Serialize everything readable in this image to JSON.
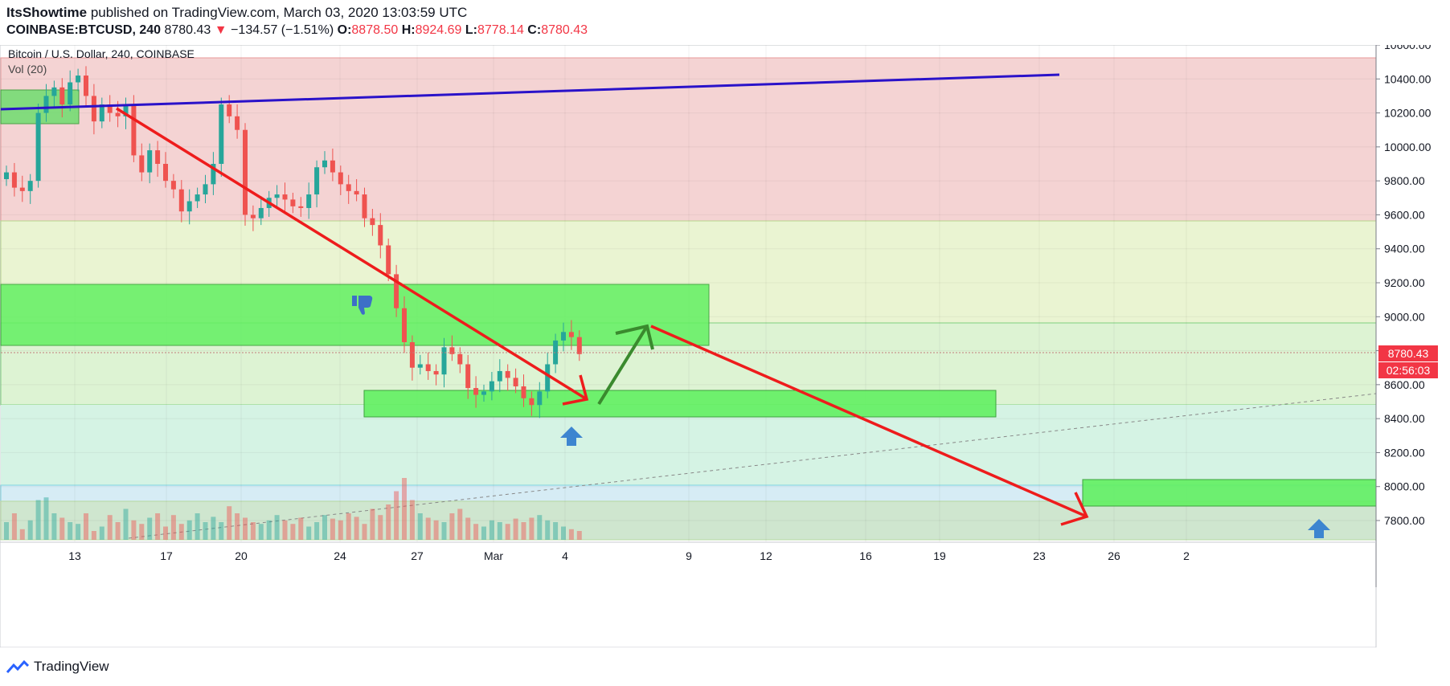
{
  "header": {
    "author": "ItsShowtime",
    "published_text": " published on TradingView.com, March 03, 2020 13:03:59 UTC",
    "symbol": "COINBASE:BTCUSD, 240",
    "last": "8780.43",
    "change_arrow": "▼",
    "change": "−134.57 (−1.51%)",
    "o_label": "O:",
    "o_value": "8878.50",
    "h_label": "H:",
    "h_value": "8924.69",
    "l_label": "L:",
    "l_value": "8778.14",
    "c_label": "C:",
    "c_value": "8780.43"
  },
  "legend": {
    "title": "Bitcoin / U.S. Dollar, 240, COINBASE",
    "volume": "Vol (20)"
  },
  "price_axis": {
    "ticks": [
      "10600.00",
      "10400.00",
      "10200.00",
      "10000.00",
      "9800.00",
      "9600.00",
      "9400.00",
      "9200.00",
      "9000.00",
      "8800.00",
      "8600.00",
      "8400.00",
      "8200.00",
      "8000.00",
      "7800.00"
    ],
    "tick_values": [
      10600,
      10400,
      10200,
      10000,
      9800,
      9600,
      9400,
      9200,
      9000,
      8800,
      8600,
      8400,
      8200,
      8000,
      7800
    ],
    "last_price_label": "8780.43",
    "countdown_label": "02:56:03"
  },
  "time_axis": {
    "ticks": [
      "13",
      "17",
      "20",
      "24",
      "27",
      "Mar",
      "4",
      "9",
      "12",
      "16",
      "19",
      "23",
      "26",
      "2"
    ]
  },
  "footer": {
    "brand": "TradingView"
  },
  "colors": {
    "up": "#26a69a",
    "down": "#ef5350",
    "red_zone": "#f4cccc",
    "yellow_zone": "#e8f3d0",
    "green_box": "#5ef05e",
    "trend_blue": "#2a12c9",
    "arrow_red": "#ee1c1c",
    "arrow_green": "#3a8a2e",
    "price_badge": "#f23645"
  },
  "chart_data": {
    "type": "candlestick",
    "title": "Bitcoin / U.S. Dollar, 240, COINBASE",
    "ylim": [
      7700,
      10700
    ],
    "x_ticks": [
      "13",
      "17",
      "20",
      "24",
      "27",
      "Mar",
      "4",
      "9",
      "12",
      "16",
      "19",
      "23",
      "26",
      "2"
    ],
    "last_price": 8780.43,
    "ohlc_last": {
      "open": 8878.5,
      "high": 8924.69,
      "low": 8778.14,
      "close": 8780.43
    },
    "closes_approx": [
      9850,
      9760,
      9740,
      9800,
      10200,
      10300,
      10350,
      10250,
      10380,
      10420,
      10300,
      10150,
      10250,
      10200,
      10180,
      10250,
      9950,
      9850,
      9980,
      9900,
      9800,
      9750,
      9620,
      9680,
      9720,
      9780,
      9900,
      10250,
      10180,
      10100,
      9600,
      9580,
      9640,
      9700,
      9720,
      9690,
      9650,
      9640,
      9720,
      9880,
      9920,
      9850,
      9780,
      9740,
      9720,
      9580,
      9540,
      9420,
      9250,
      9050,
      8850,
      8700,
      8720,
      8680,
      8660,
      8820,
      8780,
      8720,
      8580,
      8540,
      8560,
      8620,
      8680,
      8640,
      8590,
      8520,
      8480,
      8560,
      8720,
      8860,
      8910,
      8880,
      8780
    ],
    "volume_approx": [
      20,
      30,
      12,
      22,
      45,
      48,
      30,
      25,
      20,
      18,
      30,
      10,
      15,
      28,
      20,
      35,
      22,
      18,
      25,
      30,
      15,
      28,
      18,
      22,
      30,
      20,
      26,
      20,
      38,
      30,
      25,
      20,
      18,
      22,
      28,
      22,
      18,
      25,
      15,
      20,
      28,
      24,
      22,
      30,
      26,
      18,
      35,
      28,
      40,
      55,
      70,
      45,
      30,
      25,
      22,
      20,
      30,
      35,
      25,
      18,
      15,
      22,
      20,
      18,
      24,
      20,
      25,
      28,
      22,
      20,
      15,
      12,
      10
    ]
  }
}
